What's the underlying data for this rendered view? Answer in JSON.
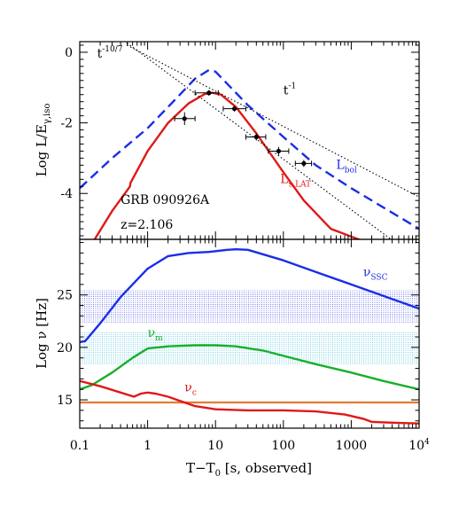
{
  "chart_data": [
    {
      "type": "line",
      "x_scale": "log",
      "xlim": [
        0.1,
        10000
      ],
      "ylim": [
        -5.3,
        0.3
      ],
      "ylabel": "Log L/E",
      "ylabel_sub": "γ,iso",
      "yticks": [
        0,
        -2,
        -4
      ],
      "annotations": [
        {
          "text": "GRB 090926A",
          "x": 0.4,
          "y": -4.3
        },
        {
          "text": "z=2.106",
          "x": 0.4,
          "y": -5.0
        }
      ],
      "series": [
        {
          "name": "L",
          "name_sub": "bol",
          "label_pos": [
            600,
            -3.3
          ],
          "color": "#1a2ee6",
          "style": "dashed",
          "x": [
            0.1,
            0.3,
            1,
            3,
            5,
            8,
            10,
            15,
            30,
            100,
            300,
            1000,
            3000,
            10000
          ],
          "y": [
            -3.85,
            -3.0,
            -2.15,
            -1.2,
            -0.75,
            -0.5,
            -0.55,
            -0.9,
            -1.5,
            -2.4,
            -3.2,
            -3.85,
            -4.4,
            -5.0
          ]
        },
        {
          "name": "L",
          "name_sub": "s,LAT",
          "label_pos": [
            90,
            -3.7
          ],
          "color": "#e01818",
          "style": "solid",
          "x": [
            0.16,
            0.3,
            0.55,
            0.56,
            1,
            2,
            4,
            7,
            9,
            12,
            20,
            40,
            100,
            200,
            500,
            1500
          ],
          "y": [
            -5.35,
            -4.5,
            -3.8,
            -3.7,
            -2.8,
            -2.0,
            -1.45,
            -1.18,
            -1.15,
            -1.2,
            -1.55,
            -2.3,
            -3.4,
            -4.2,
            -5.0,
            -5.35
          ]
        },
        {
          "name": "t",
          "name_sup": "-10/7",
          "label_pos": [
            0.18,
            -0.15
          ],
          "color": "#000000",
          "style": "dotted",
          "x": [
            0.5,
            10000
          ],
          "y": [
            0.26,
            -5.89
          ]
        },
        {
          "name": "t",
          "name_sup": "-1",
          "label_pos": [
            100,
            -1.2
          ],
          "color": "#000000",
          "style": "dotted",
          "x": [
            0.5,
            10000
          ],
          "y": [
            0.2,
            -4.1
          ]
        }
      ],
      "data_points": [
        {
          "x": 3.5,
          "y": -1.88,
          "xerr": [
            2.5,
            5
          ],
          "yerr": 0.18
        },
        {
          "x": 8,
          "y": -1.15,
          "xerr": [
            5,
            11
          ],
          "yerr": 0.08
        },
        {
          "x": 19,
          "y": -1.6,
          "xerr": [
            13,
            28
          ],
          "yerr": 0.08
        },
        {
          "x": 40,
          "y": -2.4,
          "xerr": [
            28,
            55
          ],
          "yerr": 0.1
        },
        {
          "x": 85,
          "y": -2.8,
          "xerr": [
            60,
            120
          ],
          "yerr": 0.12
        },
        {
          "x": 200,
          "y": -3.15,
          "xerr": [
            150,
            260
          ],
          "yerr": 0.1
        }
      ]
    },
    {
      "type": "line",
      "x_scale": "log",
      "xlim": [
        0.1,
        10000
      ],
      "ylim": [
        12.3,
        30.3
      ],
      "xlabel": "T−T",
      "xlabel_sub": "0",
      "xlabel_rest": " [s, observed]",
      "ylabel": "Log ν [Hz]",
      "yticks": [
        15,
        20,
        25
      ],
      "xtick_labels": [
        "0.1",
        "1",
        "10",
        "100",
        "1000",
        "10"
      ],
      "xtick_last_sup": "4",
      "bands": [
        {
          "y": [
            22.3,
            25.4
          ],
          "color": "#1a2ee6"
        },
        {
          "y": [
            18.3,
            21.4
          ],
          "color": "#22b3d6"
        },
        {
          "y": [
            14.7,
            14.8
          ],
          "color": "#e06a18"
        }
      ],
      "series": [
        {
          "name": "ν",
          "name_sub": "SSC",
          "label_pos": [
            1500,
            26.8
          ],
          "color": "#1a2ee6",
          "x": [
            0.1,
            0.12,
            0.2,
            0.4,
            1,
            2,
            4,
            8,
            15,
            20,
            30,
            100,
            300,
            1000,
            3000,
            10000
          ],
          "y": [
            20.5,
            20.6,
            22.3,
            24.8,
            27.5,
            28.7,
            29.0,
            29.1,
            29.3,
            29.35,
            29.3,
            28.3,
            27.2,
            26.0,
            24.9,
            23.7
          ]
        },
        {
          "name": "ν",
          "name_sub": "m",
          "label_pos": [
            1.0,
            21.0
          ],
          "color": "#16b028",
          "x": [
            0.1,
            0.15,
            0.3,
            0.6,
            1,
            2,
            5,
            10,
            20,
            50,
            100,
            300,
            1000,
            3000,
            10000
          ],
          "y": [
            16.0,
            16.4,
            17.6,
            19.0,
            19.9,
            20.1,
            20.2,
            20.2,
            20.1,
            19.7,
            19.2,
            18.4,
            17.6,
            16.8,
            16.0
          ]
        },
        {
          "name": "ν",
          "name_sub": "c",
          "label_pos": [
            3.5,
            15.8
          ],
          "color": "#e01818",
          "x": [
            0.1,
            0.2,
            0.4,
            0.63,
            0.68,
            0.8,
            1,
            1.3,
            2,
            3,
            5,
            10,
            30,
            100,
            300,
            800,
            1500,
            2000,
            5000,
            10000
          ],
          "y": [
            16.8,
            16.3,
            15.7,
            15.3,
            15.4,
            15.6,
            15.7,
            15.6,
            15.3,
            14.9,
            14.4,
            14.1,
            14.0,
            14.0,
            13.9,
            13.6,
            13.2,
            12.9,
            12.8,
            12.75
          ]
        }
      ]
    }
  ]
}
